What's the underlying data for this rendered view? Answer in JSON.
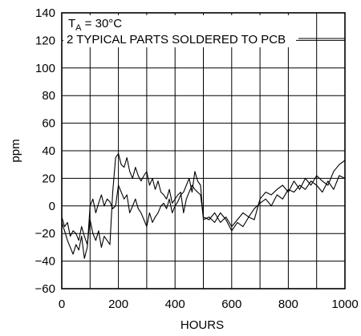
{
  "chart_data": {
    "type": "line",
    "title": "",
    "xlabel": "HOURS",
    "ylabel": "ppm",
    "xlim": [
      0,
      1000
    ],
    "ylim": [
      -60,
      140
    ],
    "xticks": [
      0,
      200,
      400,
      600,
      800,
      1000
    ],
    "yticks": [
      -60,
      -40,
      -20,
      0,
      20,
      40,
      60,
      80,
      100,
      120,
      140
    ],
    "grid": true,
    "annotations": {
      "temperature_main": "T",
      "temperature_sub": "A",
      "temperature_rest": " = 30°C",
      "parts_note": "2 TYPICAL PARTS SOLDERED TO PCB"
    },
    "series": [
      {
        "x": [
          0,
          10,
          20,
          30,
          40,
          50,
          60,
          70,
          80,
          90,
          100,
          110,
          120,
          130,
          140,
          150,
          160,
          170,
          180,
          190,
          200,
          210,
          220,
          230,
          240,
          250,
          260,
          270,
          280,
          290,
          300,
          310,
          320,
          330,
          340,
          350,
          360,
          370,
          380,
          390,
          400,
          410,
          420,
          430,
          440,
          450,
          460,
          470,
          480,
          490,
          500,
          520,
          540,
          560,
          580,
          600,
          620,
          640,
          660,
          680,
          700,
          720,
          740,
          760,
          780,
          800,
          820,
          840,
          860,
          880,
          900,
          920,
          940,
          960,
          980,
          1000
        ],
        "values": [
          -8,
          -15,
          -12,
          -22,
          -18,
          -20,
          -25,
          -15,
          -22,
          -28,
          -10,
          -20,
          -25,
          -18,
          -30,
          -22,
          -25,
          -28,
          10,
          35,
          38,
          30,
          28,
          35,
          25,
          20,
          28,
          22,
          18,
          22,
          25,
          15,
          20,
          12,
          18,
          10,
          8,
          5,
          12,
          2,
          5,
          8,
          10,
          -5,
          5,
          10,
          15,
          12,
          10,
          8,
          -8,
          -10,
          -5,
          -12,
          -8,
          -15,
          -10,
          -5,
          -8,
          -2,
          2,
          5,
          0,
          8,
          5,
          12,
          10,
          15,
          12,
          18,
          15,
          10,
          18,
          12,
          22,
          20
        ]
      },
      {
        "x": [
          0,
          10,
          20,
          30,
          40,
          50,
          60,
          70,
          80,
          90,
          100,
          110,
          120,
          130,
          140,
          150,
          160,
          170,
          180,
          190,
          200,
          210,
          220,
          230,
          240,
          250,
          260,
          270,
          280,
          290,
          300,
          310,
          320,
          330,
          340,
          350,
          360,
          370,
          380,
          390,
          400,
          410,
          420,
          430,
          440,
          450,
          460,
          470,
          480,
          490,
          500,
          520,
          540,
          560,
          580,
          600,
          620,
          640,
          660,
          680,
          700,
          720,
          740,
          760,
          780,
          800,
          820,
          840,
          860,
          880,
          900,
          920,
          940,
          960,
          980,
          1000
        ],
        "values": [
          -12,
          -18,
          -25,
          -30,
          -35,
          -28,
          -32,
          -22,
          -38,
          -30,
          0,
          5,
          -5,
          2,
          8,
          0,
          5,
          3,
          -2,
          0,
          15,
          10,
          5,
          8,
          -5,
          0,
          5,
          -2,
          -5,
          -10,
          -15,
          -5,
          -12,
          -8,
          -5,
          0,
          2,
          -2,
          5,
          -5,
          0,
          3,
          8,
          10,
          15,
          20,
          10,
          25,
          18,
          15,
          -10,
          -8,
          -12,
          -5,
          -10,
          -18,
          -12,
          -15,
          -8,
          -10,
          5,
          10,
          8,
          12,
          15,
          10,
          18,
          12,
          20,
          15,
          22,
          18,
          15,
          25,
          30,
          33
        ]
      }
    ]
  }
}
